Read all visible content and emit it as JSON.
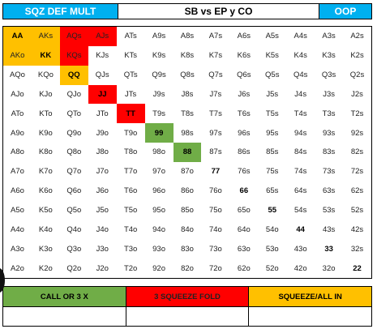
{
  "header": {
    "left": "SQZ DEF MULT",
    "middle": "SB vs EP y CO",
    "right": "OOP"
  },
  "colors": {
    "green": "#70ad47",
    "red": "#ff0000",
    "yellow": "#ffc000",
    "header_blue": "#00b0f0"
  },
  "grid": [
    [
      {
        "t": "AA",
        "c": "yellow",
        "b": true
      },
      {
        "t": "AKs",
        "c": "yellow"
      },
      {
        "t": "AQs",
        "c": "red"
      },
      {
        "t": "AJs",
        "c": "red"
      },
      {
        "t": "ATs"
      },
      {
        "t": "A9s"
      },
      {
        "t": "A8s"
      },
      {
        "t": "A7s"
      },
      {
        "t": "A6s"
      },
      {
        "t": "A5s"
      },
      {
        "t": "A4s"
      },
      {
        "t": "A3s"
      },
      {
        "t": "A2s"
      }
    ],
    [
      {
        "t": "AKo",
        "c": "yellow"
      },
      {
        "t": "KK",
        "c": "yellow",
        "b": true
      },
      {
        "t": "KQs",
        "c": "red"
      },
      {
        "t": "KJs"
      },
      {
        "t": "KTs"
      },
      {
        "t": "K9s"
      },
      {
        "t": "K8s"
      },
      {
        "t": "K7s"
      },
      {
        "t": "K6s"
      },
      {
        "t": "K5s"
      },
      {
        "t": "K4s"
      },
      {
        "t": "K3s"
      },
      {
        "t": "K2s"
      }
    ],
    [
      {
        "t": "AQo"
      },
      {
        "t": "KQo"
      },
      {
        "t": "QQ",
        "c": "yellow",
        "b": true
      },
      {
        "t": "QJs"
      },
      {
        "t": "QTs"
      },
      {
        "t": "Q9s"
      },
      {
        "t": "Q8s"
      },
      {
        "t": "Q7s"
      },
      {
        "t": "Q6s"
      },
      {
        "t": "Q5s"
      },
      {
        "t": "Q4s"
      },
      {
        "t": "Q3s"
      },
      {
        "t": "Q2s"
      }
    ],
    [
      {
        "t": "AJo"
      },
      {
        "t": "KJo"
      },
      {
        "t": "QJo"
      },
      {
        "t": "JJ",
        "c": "red",
        "b": true
      },
      {
        "t": "JTs"
      },
      {
        "t": "J9s"
      },
      {
        "t": "J8s"
      },
      {
        "t": "J7s"
      },
      {
        "t": "J6s"
      },
      {
        "t": "J5s"
      },
      {
        "t": "J4s"
      },
      {
        "t": "J3s"
      },
      {
        "t": "J2s"
      }
    ],
    [
      {
        "t": "ATo"
      },
      {
        "t": "KTo"
      },
      {
        "t": "QTo"
      },
      {
        "t": "JTo"
      },
      {
        "t": "TT",
        "c": "red",
        "b": true
      },
      {
        "t": "T9s"
      },
      {
        "t": "T8s"
      },
      {
        "t": "T7s"
      },
      {
        "t": "T6s"
      },
      {
        "t": "T5s"
      },
      {
        "t": "T4s"
      },
      {
        "t": "T3s"
      },
      {
        "t": "T2s"
      }
    ],
    [
      {
        "t": "A9o"
      },
      {
        "t": "K9o"
      },
      {
        "t": "Q9o"
      },
      {
        "t": "J9o"
      },
      {
        "t": "T9o"
      },
      {
        "t": "99",
        "c": "green",
        "b": true
      },
      {
        "t": "98s"
      },
      {
        "t": "97s"
      },
      {
        "t": "96s"
      },
      {
        "t": "95s"
      },
      {
        "t": "94s"
      },
      {
        "t": "93s"
      },
      {
        "t": "92s"
      }
    ],
    [
      {
        "t": "A8o"
      },
      {
        "t": "K8o"
      },
      {
        "t": "Q8o"
      },
      {
        "t": "J8o"
      },
      {
        "t": "T8o"
      },
      {
        "t": "98o"
      },
      {
        "t": "88",
        "c": "green",
        "b": true
      },
      {
        "t": "87s"
      },
      {
        "t": "86s"
      },
      {
        "t": "85s"
      },
      {
        "t": "84s"
      },
      {
        "t": "83s"
      },
      {
        "t": "82s"
      }
    ],
    [
      {
        "t": "A7o"
      },
      {
        "t": "K7o"
      },
      {
        "t": "Q7o"
      },
      {
        "t": "J7o"
      },
      {
        "t": "T7o"
      },
      {
        "t": "97o"
      },
      {
        "t": "87o"
      },
      {
        "t": "77",
        "b": true
      },
      {
        "t": "76s"
      },
      {
        "t": "75s"
      },
      {
        "t": "74s"
      },
      {
        "t": "73s"
      },
      {
        "t": "72s"
      }
    ],
    [
      {
        "t": "A6o"
      },
      {
        "t": "K6o"
      },
      {
        "t": "Q6o"
      },
      {
        "t": "J6o"
      },
      {
        "t": "T6o"
      },
      {
        "t": "96o"
      },
      {
        "t": "86o"
      },
      {
        "t": "76o"
      },
      {
        "t": "66",
        "b": true
      },
      {
        "t": "65s"
      },
      {
        "t": "64s"
      },
      {
        "t": "63s"
      },
      {
        "t": "62s"
      }
    ],
    [
      {
        "t": "A5o"
      },
      {
        "t": "K5o"
      },
      {
        "t": "Q5o"
      },
      {
        "t": "J5o"
      },
      {
        "t": "T5o"
      },
      {
        "t": "95o"
      },
      {
        "t": "85o"
      },
      {
        "t": "75o"
      },
      {
        "t": "65o"
      },
      {
        "t": "55",
        "b": true
      },
      {
        "t": "54s"
      },
      {
        "t": "53s"
      },
      {
        "t": "52s"
      }
    ],
    [
      {
        "t": "A4o"
      },
      {
        "t": "K4o"
      },
      {
        "t": "Q4o"
      },
      {
        "t": "J4o"
      },
      {
        "t": "T4o"
      },
      {
        "t": "94o"
      },
      {
        "t": "84o"
      },
      {
        "t": "74o"
      },
      {
        "t": "64o"
      },
      {
        "t": "54o"
      },
      {
        "t": "44",
        "b": true
      },
      {
        "t": "43s"
      },
      {
        "t": "42s"
      }
    ],
    [
      {
        "t": "A3o"
      },
      {
        "t": "K3o"
      },
      {
        "t": "Q3o"
      },
      {
        "t": "J3o"
      },
      {
        "t": "T3o"
      },
      {
        "t": "93o"
      },
      {
        "t": "83o"
      },
      {
        "t": "73o"
      },
      {
        "t": "63o"
      },
      {
        "t": "53o"
      },
      {
        "t": "43o"
      },
      {
        "t": "33",
        "b": true
      },
      {
        "t": "32s"
      }
    ],
    [
      {
        "t": "A2o"
      },
      {
        "t": "K2o"
      },
      {
        "t": "Q2o"
      },
      {
        "t": "J2o"
      },
      {
        "t": "T2o"
      },
      {
        "t": "92o"
      },
      {
        "t": "82o"
      },
      {
        "t": "72o"
      },
      {
        "t": "62o"
      },
      {
        "t": "52o"
      },
      {
        "t": "42o"
      },
      {
        "t": "32o"
      },
      {
        "t": "22",
        "b": true
      }
    ]
  ],
  "legend": [
    {
      "label": "CALL OR 3 X",
      "c": "green"
    },
    {
      "label": "3 SQUEEZE FOLD",
      "c": "red"
    },
    {
      "label": "SQUEEZE/ALL IN",
      "c": "yellow"
    }
  ]
}
